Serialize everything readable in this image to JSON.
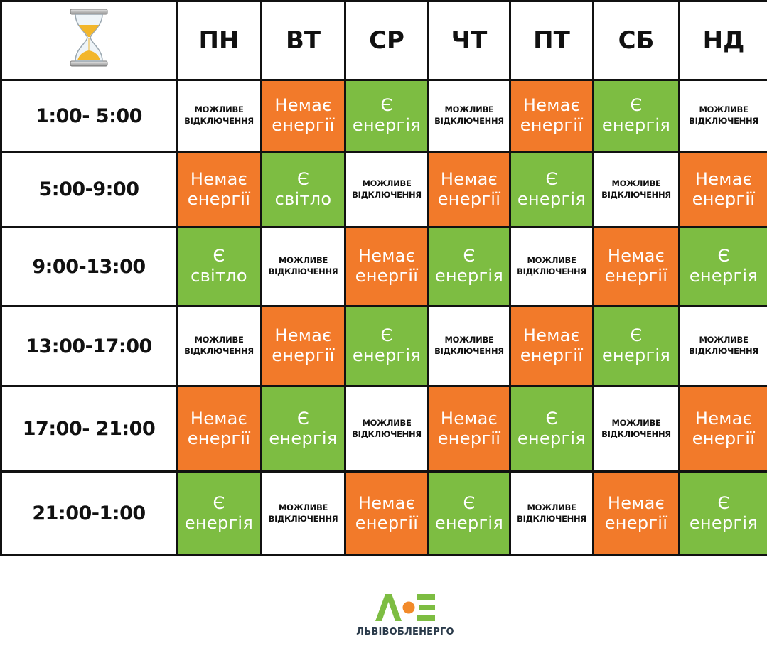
{
  "header": {
    "corner_icon": "hourglass-icon",
    "days": [
      "ПН",
      "ВТ",
      "СР",
      "ЧТ",
      "ПТ",
      "СБ",
      "НД"
    ]
  },
  "rows": [
    {
      "time": "1:00- 5:00",
      "cells": [
        {
          "status": "maybe",
          "line1": "МОЖЛИВЕ",
          "line2": "ВІДКЛЮЧЕННЯ"
        },
        {
          "status": "off",
          "line1": "Немає",
          "line2": "енергії"
        },
        {
          "status": "on",
          "line1": "Є",
          "line2": "енергія"
        },
        {
          "status": "maybe",
          "line1": "МОЖЛИВЕ",
          "line2": "ВІДКЛЮЧЕННЯ"
        },
        {
          "status": "off",
          "line1": "Немає",
          "line2": "енергії"
        },
        {
          "status": "on",
          "line1": "Є",
          "line2": "енергія"
        },
        {
          "status": "maybe",
          "line1": "МОЖЛИВЕ",
          "line2": "ВІДКЛЮЧЕННЯ"
        }
      ]
    },
    {
      "time": "5:00-9:00",
      "cells": [
        {
          "status": "off",
          "line1": "Немає",
          "line2": "енергії"
        },
        {
          "status": "on",
          "line1": "Є",
          "line2": "світло"
        },
        {
          "status": "maybe",
          "line1": "МОЖЛИВЕ",
          "line2": "ВІДКЛЮЧЕННЯ"
        },
        {
          "status": "off",
          "line1": "Немає",
          "line2": "енергії"
        },
        {
          "status": "on",
          "line1": "Є",
          "line2": "енергія"
        },
        {
          "status": "maybe",
          "line1": "МОЖЛИВЕ",
          "line2": "ВІДКЛЮЧЕННЯ"
        },
        {
          "status": "off",
          "line1": "Немає",
          "line2": "енергії"
        }
      ]
    },
    {
      "time": "9:00-13:00",
      "cells": [
        {
          "status": "on",
          "line1": "Є",
          "line2": "світло"
        },
        {
          "status": "maybe",
          "line1": "МОЖЛИВЕ",
          "line2": "ВІДКЛЮЧЕННЯ"
        },
        {
          "status": "off",
          "line1": "Немає",
          "line2": "енергії"
        },
        {
          "status": "on",
          "line1": "Є",
          "line2": "енергія"
        },
        {
          "status": "maybe",
          "line1": "МОЖЛИВЕ",
          "line2": "ВІДКЛЮЧЕННЯ"
        },
        {
          "status": "off",
          "line1": "Немає",
          "line2": "енергії"
        },
        {
          "status": "on",
          "line1": "Є",
          "line2": "енергія"
        }
      ]
    },
    {
      "time": "13:00-17:00",
      "cells": [
        {
          "status": "maybe",
          "line1": "МОЖЛИВЕ",
          "line2": "ВІДКЛЮЧЕННЯ"
        },
        {
          "status": "off",
          "line1": "Немає",
          "line2": "енергії"
        },
        {
          "status": "on",
          "line1": "Є",
          "line2": "енергія"
        },
        {
          "status": "maybe",
          "line1": "МОЖЛИВЕ",
          "line2": "ВІДКЛЮЧЕННЯ"
        },
        {
          "status": "off",
          "line1": "Немає",
          "line2": "енергії"
        },
        {
          "status": "on",
          "line1": "Є",
          "line2": "енергія"
        },
        {
          "status": "maybe",
          "line1": "МОЖЛИВЕ",
          "line2": "ВІДКЛЮЧЕННЯ"
        }
      ]
    },
    {
      "time": "17:00- 21:00",
      "cells": [
        {
          "status": "off",
          "line1": "Немає",
          "line2": "енергії"
        },
        {
          "status": "on",
          "line1": "Є",
          "line2": "енергія"
        },
        {
          "status": "maybe",
          "line1": "МОЖЛИВЕ",
          "line2": "ВІДКЛЮЧЕННЯ"
        },
        {
          "status": "off",
          "line1": "Немає",
          "line2": "енергії"
        },
        {
          "status": "on",
          "line1": "Є",
          "line2": "енергія"
        },
        {
          "status": "maybe",
          "line1": "МОЖЛИВЕ",
          "line2": "ВІДКЛЮЧЕННЯ"
        },
        {
          "status": "off",
          "line1": "Немає",
          "line2": "енергії"
        }
      ]
    },
    {
      "time": "21:00-1:00",
      "cells": [
        {
          "status": "on",
          "line1": "Є",
          "line2": "енергія"
        },
        {
          "status": "maybe",
          "line1": "МОЖЛИВЕ",
          "line2": "ВІДКЛЮЧЕННЯ"
        },
        {
          "status": "off",
          "line1": "Немає",
          "line2": "енергії"
        },
        {
          "status": "on",
          "line1": "Є",
          "line2": "енергія"
        },
        {
          "status": "maybe",
          "line1": "МОЖЛИВЕ",
          "line2": "ВІДКЛЮЧЕННЯ"
        },
        {
          "status": "off",
          "line1": "Немає",
          "line2": "енергії"
        },
        {
          "status": "on",
          "line1": "Є",
          "line2": "енергія"
        }
      ]
    }
  ],
  "colors": {
    "off": "#f27a2a",
    "on": "#7dbd42",
    "maybe": "#ffffff",
    "grid": "#111111"
  },
  "logo": {
    "icon": "loe-logo-icon",
    "mark": "ЛОЕ",
    "brand": "ЛЬВІВОБЛЕНЕРГО"
  }
}
